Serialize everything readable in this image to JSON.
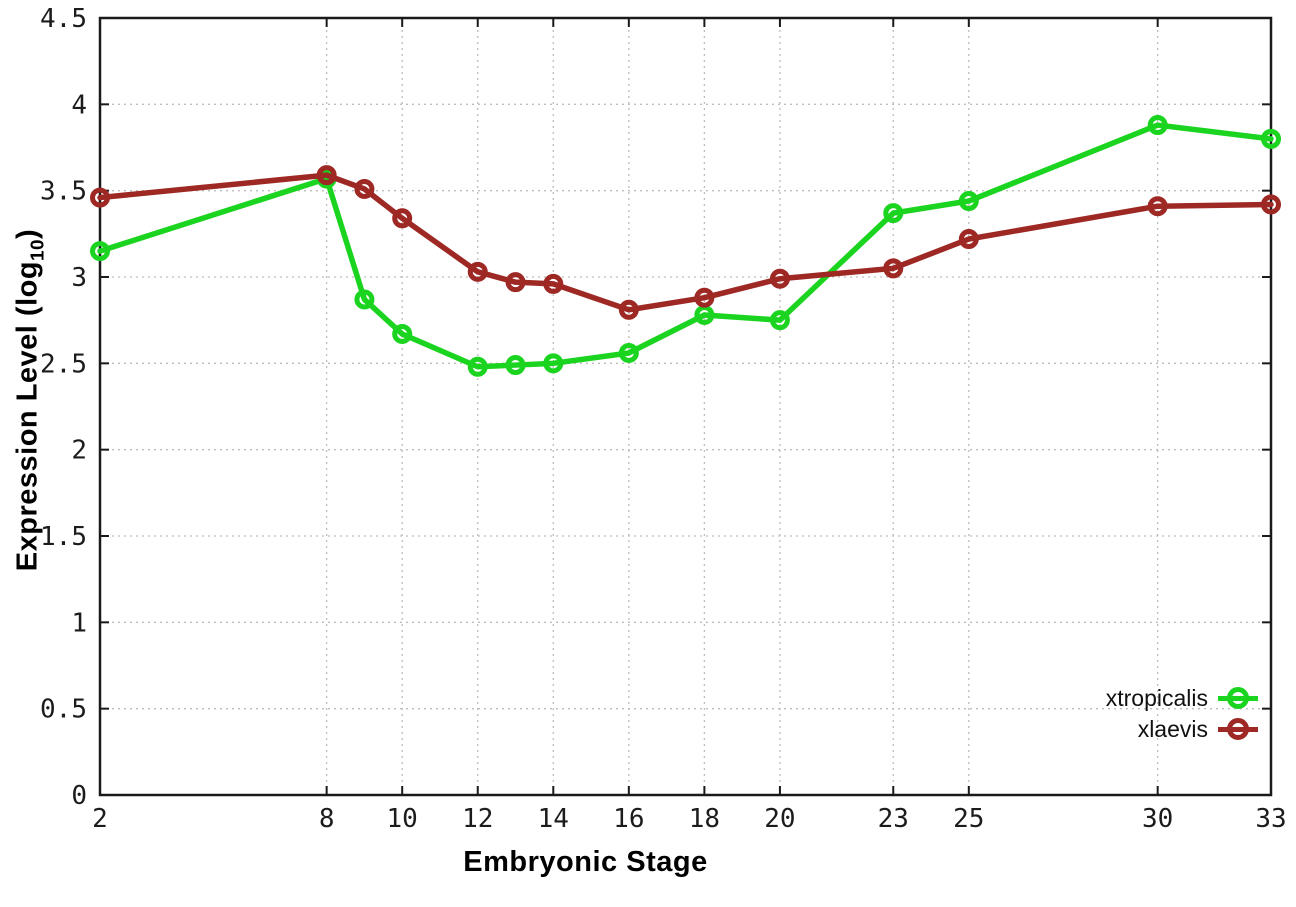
{
  "chart_data": {
    "type": "line",
    "title": "",
    "xlabel": "Embryonic Stage",
    "ylabel": "Expression Level (log10)",
    "ylabel_parts": {
      "main": "Expression Level (log",
      "sub": "10",
      "end": ")"
    },
    "x": [
      2,
      8,
      9,
      10,
      12,
      13,
      14,
      16,
      18,
      20,
      23,
      25,
      30,
      33
    ],
    "xticks": [
      2,
      8,
      10,
      12,
      14,
      16,
      18,
      20,
      23,
      25,
      30,
      33
    ],
    "yticks": [
      0,
      0.5,
      1,
      1.5,
      2,
      2.5,
      3,
      3.5,
      4,
      4.5
    ],
    "xlim": [
      2,
      33
    ],
    "ylim": [
      0,
      4.5
    ],
    "grid": true,
    "grid_style": "dotted",
    "legend_position": "bottom-right-inside",
    "series": [
      {
        "name": "xtropicalis",
        "color": "#1ad41f",
        "marker": "open-circle",
        "values": [
          3.15,
          3.57,
          2.87,
          2.67,
          2.48,
          2.49,
          2.5,
          2.56,
          2.78,
          2.75,
          3.37,
          3.44,
          3.88,
          3.8
        ]
      },
      {
        "name": "xlaevis",
        "color": "#9e2823",
        "marker": "open-circle",
        "values": [
          3.46,
          3.59,
          3.51,
          3.34,
          3.03,
          2.97,
          2.96,
          2.81,
          2.88,
          2.99,
          3.05,
          3.22,
          3.41,
          3.42
        ]
      }
    ],
    "colors": {
      "grid": "#bdbdbd",
      "axis": "#1a1a1a",
      "tick_text": "#1c1c1c"
    }
  }
}
